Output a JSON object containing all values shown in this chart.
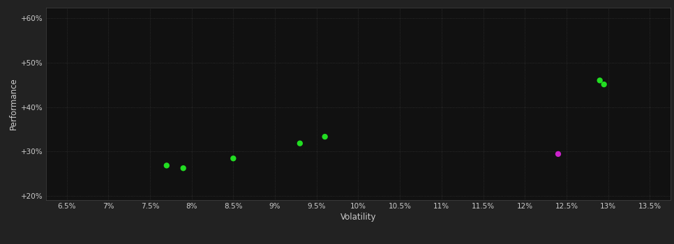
{
  "background_color": "#222222",
  "plot_bg_color": "#111111",
  "grid_color": "#333333",
  "text_color": "#cccccc",
  "xlabel": "Volatility",
  "ylabel": "Performance",
  "xlim": [
    0.0625,
    0.1375
  ],
  "ylim": [
    0.19,
    0.625
  ],
  "xticks": [
    0.065,
    0.07,
    0.075,
    0.08,
    0.085,
    0.09,
    0.095,
    0.1,
    0.105,
    0.11,
    0.115,
    0.12,
    0.125,
    0.13,
    0.135
  ],
  "yticks": [
    0.2,
    0.3,
    0.4,
    0.5,
    0.6
  ],
  "xtick_labels": [
    "6.5%",
    "7%",
    "7.5%",
    "8%",
    "8.5%",
    "9%",
    "9.5%",
    "10%",
    "10.5%",
    "11%",
    "11.5%",
    "12%",
    "12.5%",
    "13%",
    "13.5%"
  ],
  "ytick_labels": [
    "+20%",
    "+30%",
    "+40%",
    "+50%",
    "+60%"
  ],
  "points_green": [
    [
      0.077,
      0.268
    ],
    [
      0.079,
      0.262
    ],
    [
      0.085,
      0.284
    ],
    [
      0.093,
      0.318
    ],
    [
      0.096,
      0.333
    ],
    [
      0.129,
      0.46
    ],
    [
      0.1295,
      0.451
    ]
  ],
  "points_magenta": [
    [
      0.124,
      0.294
    ]
  ],
  "green_color": "#22dd22",
  "magenta_color": "#cc22cc",
  "marker_size": 6
}
